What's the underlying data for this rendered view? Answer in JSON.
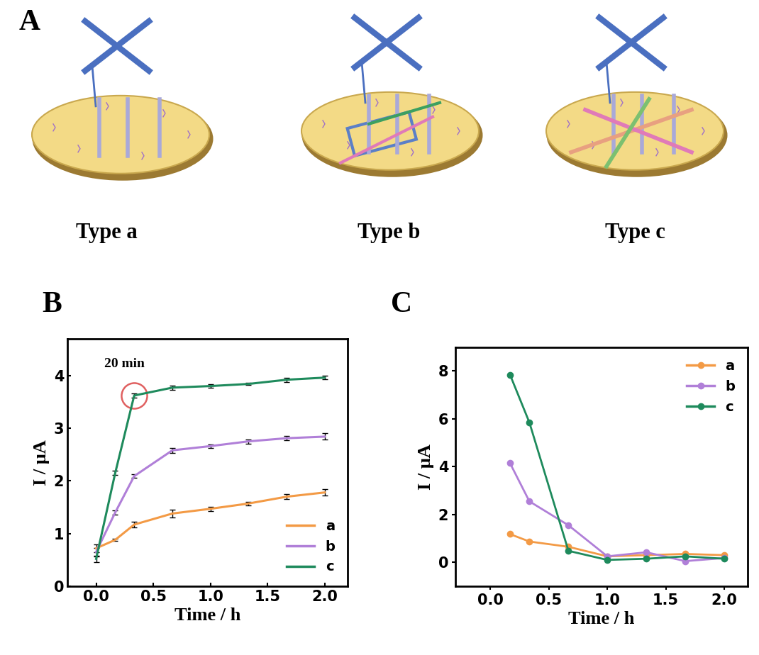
{
  "diagram": {
    "panel": "A",
    "items": [
      "Type a",
      "Type b",
      "Type c"
    ]
  },
  "chart_data": [
    {
      "panel": "B",
      "type": "line",
      "x_label": "Time / h",
      "y_label": "I / μA",
      "xlim": [
        -0.25,
        2.2
      ],
      "xticks": [
        0.0,
        0.5,
        1.0,
        1.5,
        2.0
      ],
      "ylim": [
        0,
        4.7
      ],
      "yticks": [
        0,
        1,
        2,
        3,
        4
      ],
      "legend": "lower right",
      "marker": "none",
      "annotation": {
        "text": "20 min",
        "x": 0.333,
        "y": 3.62
      },
      "series": [
        {
          "name": "a",
          "color": "#F39A45",
          "x": [
            0.0,
            0.167,
            0.333,
            0.667,
            1.0,
            1.333,
            1.667,
            2.0
          ],
          "values": [
            0.72,
            0.88,
            1.17,
            1.38,
            1.47,
            1.57,
            1.7,
            1.78
          ],
          "errors": [
            0.08,
            0.02,
            0.05,
            0.07,
            0.04,
            0.03,
            0.05,
            0.06
          ]
        },
        {
          "name": "b",
          "color": "#B07FD8",
          "x": [
            0.0,
            0.167,
            0.333,
            0.667,
            1.0,
            1.333,
            1.667,
            2.0
          ],
          "values": [
            0.65,
            1.4,
            2.09,
            2.58,
            2.66,
            2.75,
            2.81,
            2.84
          ],
          "errors": [
            0.08,
            0.04,
            0.03,
            0.05,
            0.03,
            0.04,
            0.04,
            0.06
          ]
        },
        {
          "name": "c",
          "color": "#1E8A5C",
          "x": [
            0.0,
            0.167,
            0.333,
            0.667,
            1.0,
            1.333,
            1.667,
            2.0
          ],
          "values": [
            0.52,
            2.15,
            3.62,
            3.77,
            3.8,
            3.84,
            3.92,
            3.96
          ],
          "errors": [
            0.06,
            0.04,
            0.04,
            0.04,
            0.03,
            0.02,
            0.04,
            0.03
          ]
        }
      ]
    },
    {
      "panel": "C",
      "type": "line",
      "x_label": "Time / h",
      "y_label": "I / μA",
      "xlim": [
        -0.3,
        2.2
      ],
      "xticks": [
        0.0,
        0.5,
        1.0,
        1.5,
        2.0
      ],
      "ylim": [
        -1,
        9
      ],
      "yticks": [
        0,
        2,
        4,
        6,
        8
      ],
      "legend": "upper right",
      "marker": "o",
      "series": [
        {
          "name": "a",
          "color": "#F39A45",
          "x": [
            0.167,
            0.333,
            0.667,
            1.0,
            1.333,
            1.667,
            2.0
          ],
          "values": [
            1.18,
            0.87,
            0.65,
            0.25,
            0.3,
            0.35,
            0.3
          ]
        },
        {
          "name": "b",
          "color": "#B07FD8",
          "x": [
            0.167,
            0.333,
            0.667,
            1.0,
            1.333,
            1.667,
            2.0
          ],
          "values": [
            4.15,
            2.55,
            1.55,
            0.25,
            0.42,
            0.05,
            0.18
          ]
        },
        {
          "name": "c",
          "color": "#1E8A5C",
          "x": [
            0.167,
            0.333,
            0.667,
            1.0,
            1.333,
            1.667,
            2.0
          ],
          "values": [
            7.85,
            5.85,
            0.48,
            0.1,
            0.15,
            0.25,
            0.15
          ]
        }
      ]
    }
  ]
}
